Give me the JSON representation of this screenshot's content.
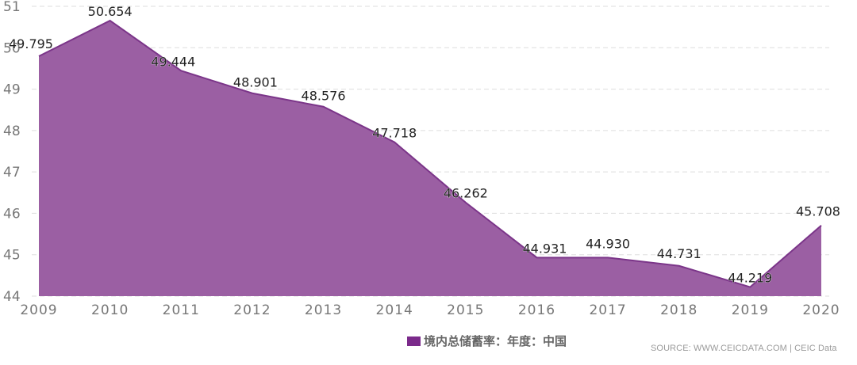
{
  "chart_data": {
    "type": "area",
    "title": "",
    "xlabel": "",
    "ylabel": "",
    "categories": [
      "2009",
      "2010",
      "2011",
      "2012",
      "2013",
      "2014",
      "2015",
      "2016",
      "2017",
      "2018",
      "2019",
      "2020"
    ],
    "series": [
      {
        "name": "境内总储蓄率：年度：中国",
        "values": [
          49.795,
          50.654,
          49.444,
          48.901,
          48.576,
          47.718,
          46.262,
          44.931,
          44.93,
          44.731,
          44.219,
          45.708
        ],
        "labels": [
          "49.795",
          "50.654",
          "49.444",
          "48.901",
          "48.576",
          "47.718",
          "46.262",
          "44.931",
          "44.930",
          "44.731",
          "44.219",
          "45.708"
        ],
        "color": "#9b5fa3"
      }
    ],
    "ylim": [
      44,
      51
    ],
    "yticks": [
      "44",
      "45",
      "46",
      "47",
      "48",
      "49",
      "50",
      "51"
    ],
    "grid": true,
    "legend_position": "bottom"
  },
  "legend": {
    "label": "境内总储蓄率：年度：中国",
    "swatch_color": "#7b2a8b"
  },
  "source": "SOURCE: WWW.CEICDATA.COM | CEIC Data",
  "colors": {
    "area_fill": "#9b5fa3",
    "area_line": "#7b3589",
    "grid": "#dddddd",
    "axis_text": "#777777",
    "label_text": "#222222"
  }
}
